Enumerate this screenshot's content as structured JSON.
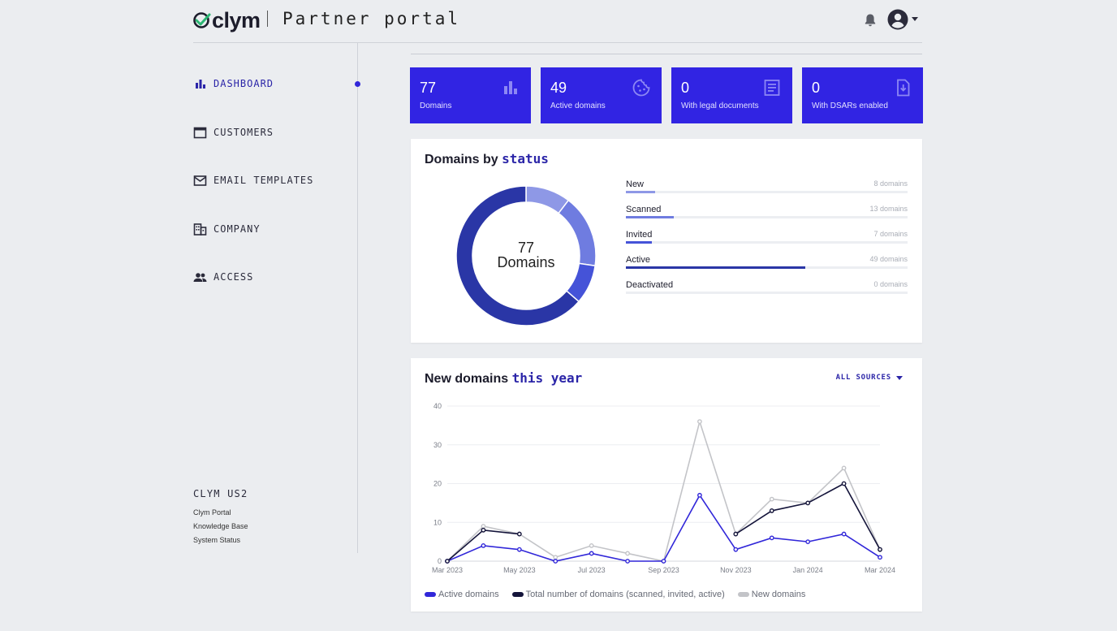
{
  "header": {
    "logo_text": "clym",
    "portal_title": "Partner portal",
    "icons": [
      "bell-icon",
      "account-icon",
      "caret-down-icon"
    ]
  },
  "sidebar": {
    "items": [
      {
        "label": "DASHBOARD",
        "icon": "bar-chart-icon",
        "active": true
      },
      {
        "label": "CUSTOMERS",
        "icon": "window-icon"
      },
      {
        "label": "EMAIL TEMPLATES",
        "icon": "mail-icon"
      },
      {
        "label": "COMPANY",
        "icon": "building-icon"
      },
      {
        "label": "ACCESS",
        "icon": "people-icon"
      }
    ],
    "environment": "CLYM US2",
    "links": [
      "Clym Portal",
      "Knowledge Base",
      "System Status"
    ]
  },
  "stats": [
    {
      "value": "77",
      "label": "Domains",
      "icon": "bar-chart-icon"
    },
    {
      "value": "49",
      "label": "Active domains",
      "icon": "cookie-icon"
    },
    {
      "value": "0",
      "label": "With legal documents",
      "icon": "document-icon"
    },
    {
      "value": "0",
      "label": "With DSARs enabled",
      "icon": "download-doc-icon"
    }
  ],
  "status_panel": {
    "title_plain": "Domains by",
    "title_accent": "status",
    "donut_count": "77",
    "donut_unit": "Domains",
    "statuses": [
      {
        "name": "New",
        "count": "8 domains",
        "value": 8,
        "color": "#8e98e6"
      },
      {
        "name": "Scanned",
        "count": "13 domains",
        "value": 13,
        "color": "#6f7ce0"
      },
      {
        "name": "Invited",
        "count": "7 domains",
        "value": 7,
        "color": "#4553d8"
      },
      {
        "name": "Active",
        "count": "49 domains",
        "value": 49,
        "color": "#2a36a6"
      },
      {
        "name": "Deactivated",
        "count": "0 domains",
        "value": 0,
        "color": "#1e2780"
      }
    ],
    "total": 77
  },
  "trend_panel": {
    "title_plain": "New domains",
    "title_accent": "this year",
    "sources_label": "ALL SOURCES"
  },
  "chart_data": {
    "type": "line",
    "x": [
      "Mar 2023",
      "Apr 2023",
      "May 2023",
      "Jun 2023",
      "Jul 2023",
      "Aug 2023",
      "Sep 2023",
      "Oct 2023",
      "Nov 2023",
      "Dec 2023",
      "Jan 2024",
      "Feb 2024",
      "Mar 2024"
    ],
    "x_tick_labels": [
      "Mar 2023",
      "May 2023",
      "Jul 2023",
      "Sep 2023",
      "Nov 2023",
      "Jan 2024",
      "Mar 2024"
    ],
    "ylim": [
      0,
      40
    ],
    "y_ticks": [
      0,
      10,
      20,
      30,
      40
    ],
    "grid": true,
    "legend_position": "bottom-left",
    "series": [
      {
        "name": "Active domains",
        "color": "#3127d9",
        "values": [
          0,
          4,
          3,
          0,
          2,
          0,
          0,
          17,
          3,
          6,
          5,
          7,
          1
        ]
      },
      {
        "name": "Total number of domains (scanned, invited, active)",
        "color": "#14143a",
        "values": [
          0,
          8,
          7,
          null,
          null,
          null,
          null,
          null,
          7,
          13,
          15,
          20,
          3
        ]
      },
      {
        "name": "New domains",
        "color": "#c3c4c8",
        "values": [
          0,
          9,
          7,
          1,
          4,
          2,
          0,
          36,
          7,
          16,
          15,
          24,
          3
        ]
      }
    ]
  }
}
